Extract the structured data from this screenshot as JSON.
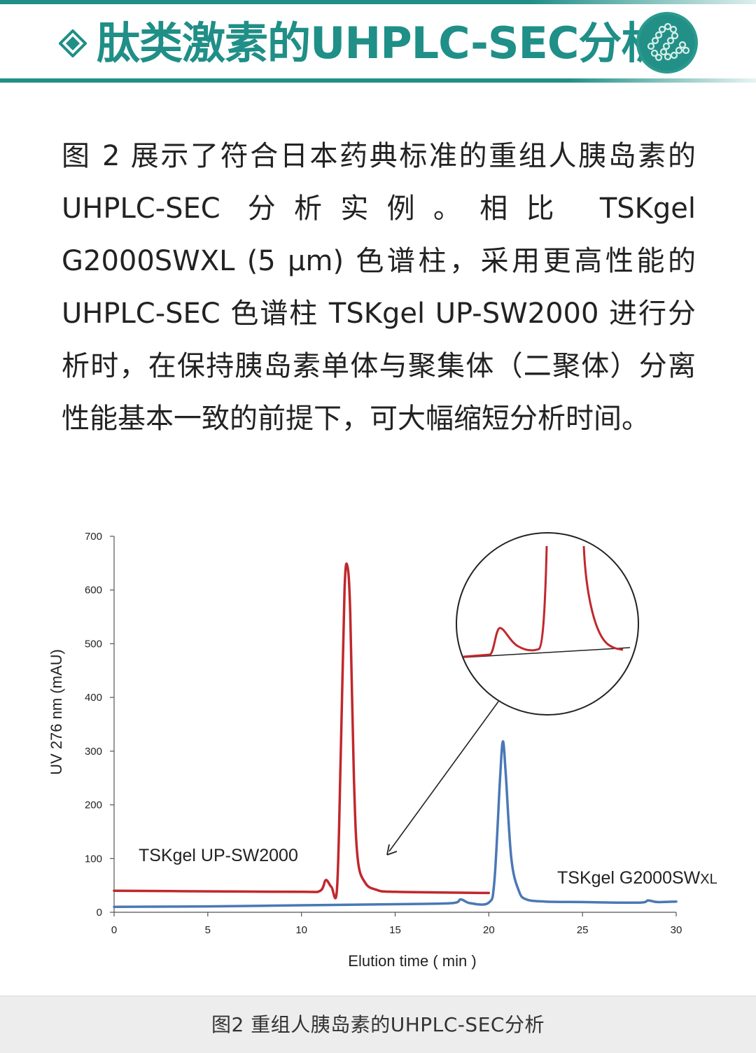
{
  "header": {
    "title": "肽类激素的UHPLC-SEC分析",
    "accent_color": "#1f8f87",
    "left_icon": "diamond-icon",
    "right_icon": "peptide-chain-logo"
  },
  "body": {
    "paragraph": "图 2 展示了符合日本药典标准的重组人胰岛素的 UHPLC-SEC 分析实例。相比 TSKgel G2000SWXL (5 μm) 色谱柱，采用更高性能的 UHPLC-SEC 色谱柱 TSKgel UP-SW2000 进行分析时，在保持胰岛素单体与聚集体（二聚体）分离性能基本一致的前提下，可大幅缩短分析时间。"
  },
  "chart_data": {
    "type": "line",
    "title": "",
    "xlabel": "Elution time ( min )",
    "ylabel": "UV 276 nm (mAU)",
    "xlim": [
      0,
      30
    ],
    "ylim": [
      0,
      700
    ],
    "xticks": [
      0,
      5,
      10,
      15,
      20,
      25,
      30
    ],
    "yticks": [
      0,
      100,
      200,
      300,
      400,
      500,
      600,
      700
    ],
    "grid": false,
    "series": [
      {
        "name": "TSKgel UP-SW2000",
        "color": "#c0282d",
        "x": [
          0,
          5,
          10,
          11.0,
          11.3,
          11.6,
          11.9,
          12.1,
          12.3,
          12.45,
          12.6,
          12.8,
          13.0,
          13.4,
          14.0,
          15.0,
          20.0
        ],
        "y": [
          40,
          39,
          38,
          40,
          60,
          47,
          45,
          300,
          600,
          645,
          560,
          250,
          100,
          55,
          42,
          38,
          36
        ]
      },
      {
        "name": "TSKgel G2000SWXL",
        "color": "#4a78b5",
        "x": [
          0,
          5,
          10,
          15,
          18.0,
          18.5,
          19.0,
          20.0,
          20.3,
          20.6,
          20.75,
          20.9,
          21.2,
          21.6,
          22.0,
          23.0,
          25.0,
          28.0,
          28.5,
          29.0,
          30.0
        ],
        "y": [
          10,
          11,
          13,
          15,
          17,
          24,
          17,
          18,
          60,
          250,
          318,
          260,
          100,
          40,
          24,
          20,
          19,
          18,
          22,
          19,
          20
        ]
      }
    ],
    "series_label_parts": {
      "red_main": "TSKgel UP-SW2000",
      "blue_main": "TSKgel G2000SW",
      "blue_sub": "XL"
    },
    "annotation": "inset magnifier showing the dimer peak and monomer base of TSKgel UP-SW2000 trace"
  },
  "caption": {
    "text": "图2   重组人胰岛素的UHPLC-SEC分析"
  }
}
